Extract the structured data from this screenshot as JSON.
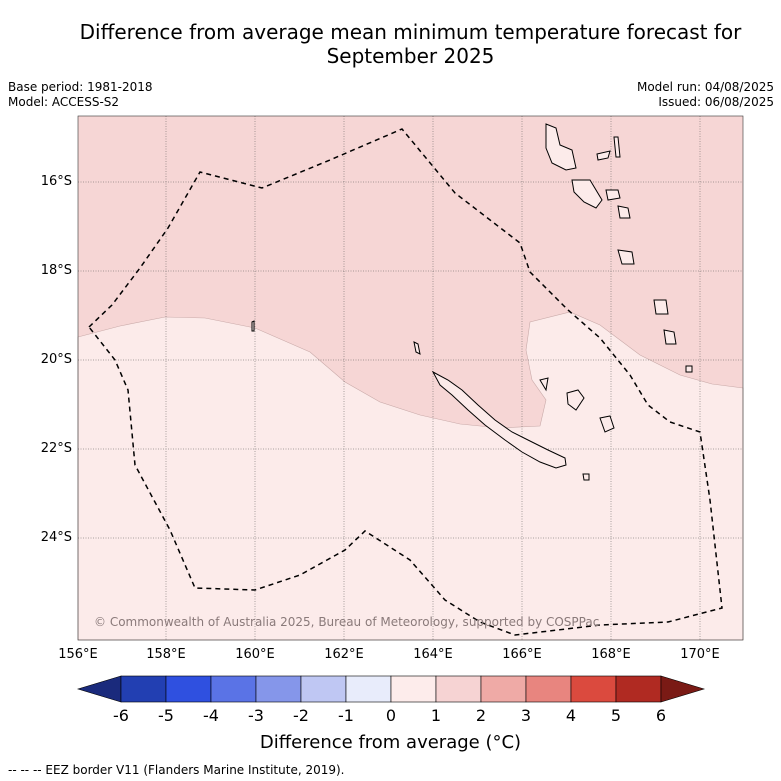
{
  "title": "Difference from average mean minimum temperature forecast for September 2025",
  "base_period": "Base period: 1981-2018",
  "model": "Model: ACCESS-S2",
  "model_run": "Model run: 04/08/2025",
  "issued": "Issued: 06/08/2025",
  "copyright": "© Commonwealth of Australia 2025, Bureau of Meteorology, supported by COSPPac",
  "lon_labels": [
    "156°E",
    "158°E",
    "160°E",
    "162°E",
    "164°E",
    "166°E",
    "168°E",
    "170°E"
  ],
  "lat_labels": [
    "16°S",
    "18°S",
    "20°S",
    "22°S",
    "24°S"
  ],
  "colorbar": {
    "title": "Difference from average (°C)",
    "ticks": [
      "-6",
      "-5",
      "-4",
      "-3",
      "-2",
      "-1",
      "0",
      "1",
      "2",
      "3",
      "4",
      "5",
      "6"
    ],
    "colors": [
      "#1a2a7c",
      "#223fb2",
      "#2f50e0",
      "#5a73e6",
      "#8596ea",
      "#bfc7f3",
      "#e8ecfb",
      "#fdeceb",
      "#f6d3d3",
      "#efaaa6",
      "#e8857f",
      "#db4a3e",
      "#b02a22",
      "#7a1a15"
    ]
  },
  "footer": "-- -- -- EEZ border V11 (Flanders Marine Institute, 2019)."
}
